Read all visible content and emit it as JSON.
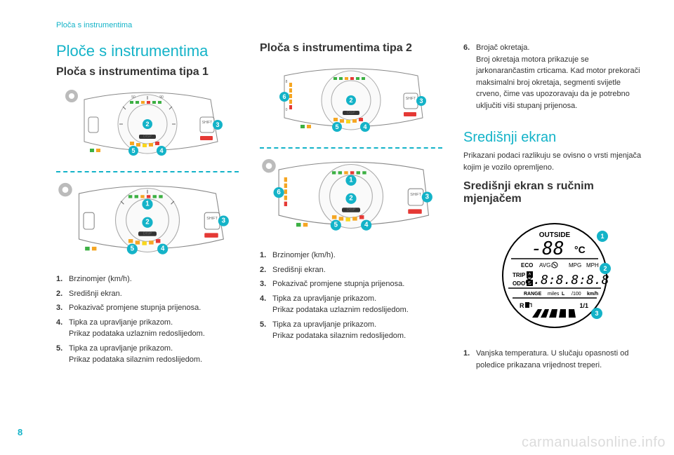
{
  "breadcrumb": "Ploča s instrumentima",
  "page_number": "8",
  "watermark": "carmanualsonline.info",
  "left": {
    "main_title": "Ploče s instrumentima",
    "section_title": "Ploča s instrumentima tipa 1",
    "list": [
      {
        "n": "1.",
        "t": "Brzinomjer (km/h)."
      },
      {
        "n": "2.",
        "t": "Središnji ekran."
      },
      {
        "n": "3.",
        "t": "Pokazivač promjene stupnja prijenosa."
      },
      {
        "n": "4.",
        "t": "Tipka za upravljanje prikazom.\nPrikaz podataka uzlaznim redoslijedom."
      },
      {
        "n": "5.",
        "t": "Tipka za upravljanje prikazom.\nPrikaz podataka silaznim redoslijedom."
      }
    ]
  },
  "mid": {
    "section_title": "Ploča s instrumentima tipa 2",
    "list": [
      {
        "n": "1.",
        "t": "Brzinomjer (km/h)."
      },
      {
        "n": "2.",
        "t": "Središnji ekran."
      },
      {
        "n": "3.",
        "t": "Pokazivač promjene stupnja prijenosa."
      },
      {
        "n": "4.",
        "t": "Tipka za upravljanje prikazom.\nPrikaz podataka uzlaznim redoslijedom."
      },
      {
        "n": "5.",
        "t": "Tipka za upravljanje prikazom.\nPrikaz podataka silaznim redoslijedom."
      }
    ]
  },
  "right": {
    "item6": {
      "n": "6.",
      "t": "Brojač okretaja.\nBroj okretaja motora prikazuje se jarkonarančastim crticama. Kad motor prekorači maksimalni broj okretaja, segmenti svijetle crveno, čime vas upozoravaju da je potrebno uključiti viši stupanj prijenosa."
    },
    "center_title": "Središnji ekran",
    "center_intro": "Prikazani podaci razlikuju se ovisno o vrsti mjenjača kojim je vozilo opremljeno.",
    "manual_title": "Središnji ekran s ručnim mjenjačem",
    "item1": {
      "n": "1.",
      "t": "Vanjska temperatura. U slučaju opasnosti od poledice prikazana vrijednost treperi."
    },
    "display": {
      "outside": "OUTSIDE",
      "temp": "-88",
      "unit_c": "°C",
      "eco": "ECO",
      "avg": "AVG.",
      "mpg": "MPG",
      "mph": "MPH",
      "trip": "TRIP",
      "odo": "ODO",
      "a": "A",
      "b": "B",
      "digits": "8.8:8.8:8.8",
      "range": "RANGE",
      "miles": "miles",
      "l": "L",
      "per100": "/100",
      "kmh": "km/h",
      "r": "R",
      "fuel": "1/1"
    }
  },
  "colors": {
    "teal": "#14b3c8",
    "text": "#333333",
    "green": "#3cb043",
    "orange": "#f5a623",
    "red": "#e53935",
    "yellow": "#f9d71c",
    "watermark": "#dcdcdc"
  }
}
